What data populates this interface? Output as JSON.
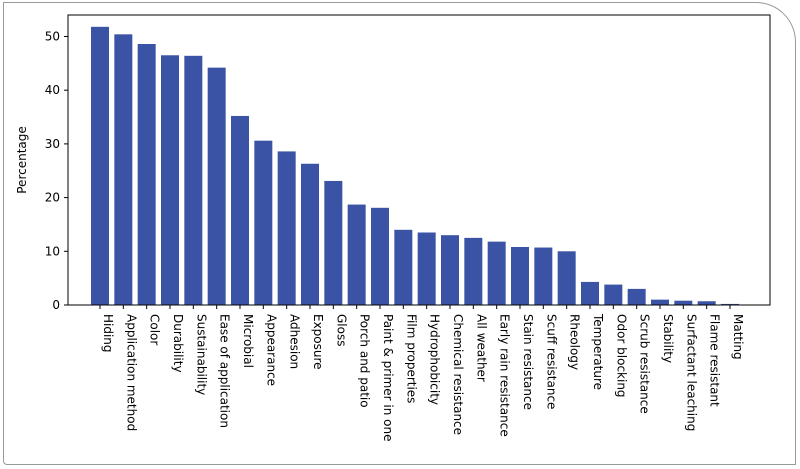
{
  "chart_data": {
    "type": "bar",
    "title": "",
    "xlabel": "",
    "ylabel": "Percentage",
    "ylim": [
      0,
      54
    ],
    "yticks": [
      0,
      10,
      20,
      30,
      40,
      50
    ],
    "bar_color": "#3a53a4",
    "grid": false,
    "categories": [
      "Hiding",
      "Application method",
      "Color",
      "Durability",
      "Sustainability",
      "Ease of application",
      "Microbial",
      "Appearance",
      "Adhesion",
      "Exposure",
      "Gloss",
      "Porch and patio",
      "Paint & primer in one",
      "Film properties",
      "Hydrophobicity",
      "Chemical resistance",
      "All weather",
      "Early rain resistance",
      "Stain resistance",
      "Scuff resistance",
      "Rheology",
      "Temperature",
      "Odor blocking",
      "Scrub resistance",
      "Stability",
      "Surfactant leaching",
      "Flame resistant",
      "Matting"
    ],
    "values": [
      51.8,
      50.4,
      48.6,
      46.5,
      46.4,
      44.2,
      35.2,
      30.6,
      28.6,
      26.3,
      23.1,
      18.7,
      18.1,
      14.0,
      13.5,
      13.0,
      12.5,
      11.8,
      10.8,
      10.7,
      10.0,
      4.3,
      3.8,
      3.0,
      1.0,
      0.8,
      0.7,
      0.2
    ]
  }
}
